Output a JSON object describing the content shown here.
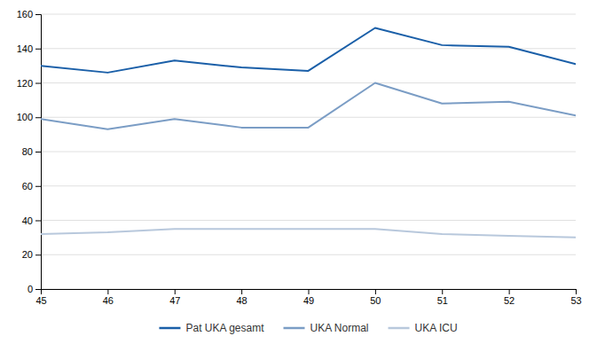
{
  "chart_data": {
    "type": "line",
    "x": [
      45,
      46,
      47,
      48,
      49,
      50,
      51,
      52,
      53
    ],
    "series": [
      {
        "name": "Pat UKA gesamt",
        "color": "#1A5FA8",
        "values": [
          130,
          126,
          133,
          129,
          127,
          152,
          142,
          141,
          131
        ]
      },
      {
        "name": "UKA Normal",
        "color": "#7B9DC5",
        "values": [
          99,
          93,
          99,
          94,
          94,
          120,
          108,
          109,
          101
        ]
      },
      {
        "name": "UKA ICU",
        "color": "#B8C8DC",
        "values": [
          32,
          33,
          35,
          35,
          35,
          35,
          32,
          31,
          30
        ]
      }
    ],
    "xlim": [
      45,
      53
    ],
    "xticks": [
      45,
      46,
      47,
      48,
      49,
      50,
      51,
      52,
      53
    ],
    "ylim": [
      0,
      160
    ],
    "yticks": [
      0,
      20,
      40,
      60,
      80,
      100,
      120,
      140,
      160
    ],
    "grid": true,
    "legend": "bottom"
  }
}
